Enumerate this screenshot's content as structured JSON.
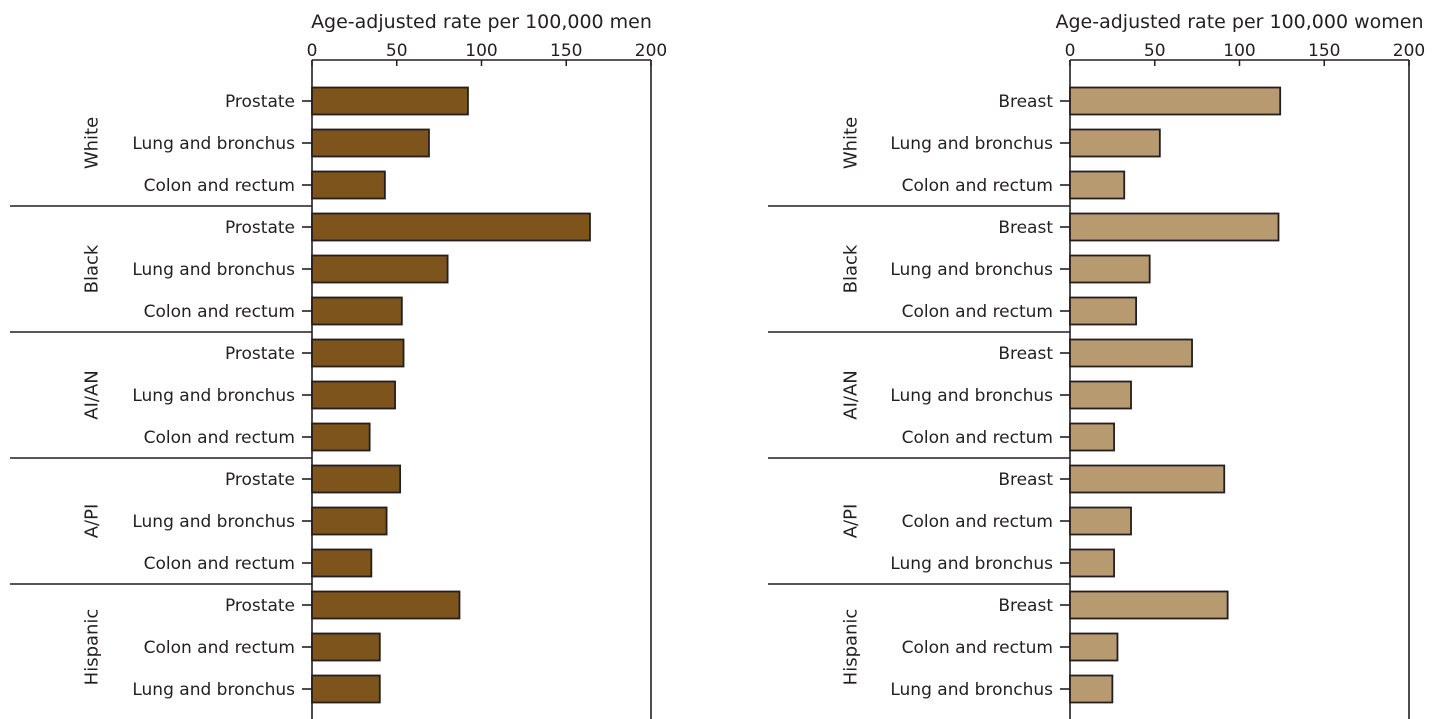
{
  "chart_data": [
    {
      "type": "bar",
      "orientation": "horizontal",
      "xlabel": "Age-adjusted rate per 100,000 men",
      "xlim": [
        0,
        200
      ],
      "ticks": [
        0,
        50,
        100,
        150,
        200
      ],
      "grid": false,
      "bar_color": "#7d541b",
      "groups": [
        {
          "name": "White",
          "categories": [
            "Prostate",
            "Lung and bronchus",
            "Colon and rectum"
          ],
          "values": [
            92,
            69,
            43
          ]
        },
        {
          "name": "Black",
          "categories": [
            "Prostate",
            "Lung and bronchus",
            "Colon and rectum"
          ],
          "values": [
            164,
            80,
            53
          ]
        },
        {
          "name": "AI/AN",
          "categories": [
            "Prostate",
            "Lung and bronchus",
            "Colon and rectum"
          ],
          "values": [
            54,
            49,
            34
          ]
        },
        {
          "name": "A/PI",
          "categories": [
            "Prostate",
            "Lung and bronchus",
            "Colon and rectum"
          ],
          "values": [
            52,
            44,
            35
          ]
        },
        {
          "name": "Hispanic",
          "categories": [
            "Prostate",
            "Colon and rectum",
            "Lung and bronchus"
          ],
          "values": [
            87,
            40,
            40
          ]
        }
      ]
    },
    {
      "type": "bar",
      "orientation": "horizontal",
      "xlabel": "Age-adjusted rate per 100,000 women",
      "xlim": [
        0,
        200
      ],
      "ticks": [
        0,
        50,
        100,
        150,
        200
      ],
      "grid": false,
      "bar_color": "#b89a70",
      "groups": [
        {
          "name": "White",
          "categories": [
            "Breast",
            "Lung and bronchus",
            "Colon and rectum"
          ],
          "values": [
            124,
            53,
            32
          ]
        },
        {
          "name": "Black",
          "categories": [
            "Breast",
            "Lung and bronchus",
            "Colon and rectum"
          ],
          "values": [
            123,
            47,
            39
          ]
        },
        {
          "name": "AI/AN",
          "categories": [
            "Breast",
            "Lung and bronchus",
            "Colon and rectum"
          ],
          "values": [
            72,
            36,
            26
          ]
        },
        {
          "name": "A/PI",
          "categories": [
            "Breast",
            "Colon and rectum",
            "Lung and bronchus"
          ],
          "values": [
            91,
            36,
            26
          ]
        },
        {
          "name": "Hispanic",
          "categories": [
            "Breast",
            "Colon and rectum",
            "Lung and bronchus"
          ],
          "values": [
            93,
            28,
            25
          ]
        }
      ]
    }
  ]
}
